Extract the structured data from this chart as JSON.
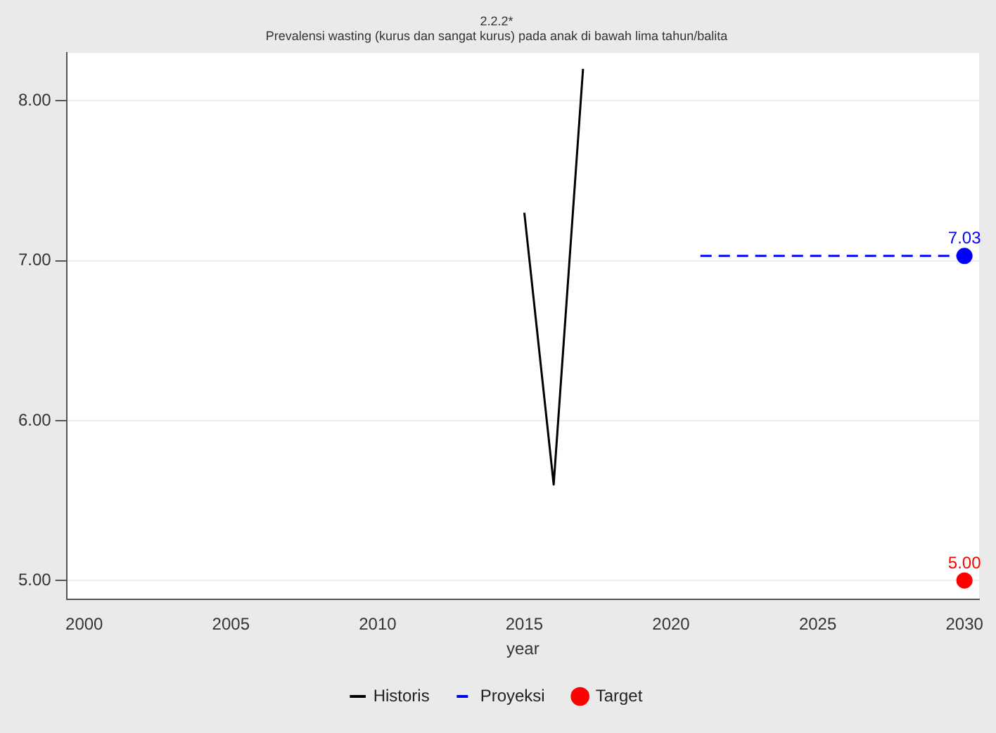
{
  "chart_data": {
    "type": "line",
    "title": "2.2.2*",
    "subtitle": "Prevalensi wasting (kurus dan sangat kurus) pada anak di bawah lima tahun/balita",
    "xlabel": "year",
    "xlim": [
      1999.4,
      2030.5
    ],
    "xticks": [
      2000,
      2005,
      2010,
      2015,
      2020,
      2025,
      2030
    ],
    "ylim": [
      4.88,
      8.3
    ],
    "yticks": [
      {
        "value": 5,
        "label": "5.00"
      },
      {
        "value": 6,
        "label": "6.00"
      },
      {
        "value": 7,
        "label": "7.00"
      },
      {
        "value": 8,
        "label": "8.00"
      }
    ],
    "grid": "y",
    "legend": "bottom",
    "series": [
      {
        "name": "Historis",
        "color": "#000000",
        "marker": "none",
        "line_style": "solid",
        "x": [
          2015,
          2016,
          2017
        ],
        "values": [
          7.3,
          5.6,
          8.2
        ]
      },
      {
        "name": "Proyeksi",
        "color": "#0000ff",
        "marker": "none",
        "line_style": "dashed",
        "x": [
          2021,
          2030
        ],
        "values": [
          7.03,
          7.03
        ]
      },
      {
        "type": "scatter",
        "color": "#0000ff",
        "marker": "circle",
        "x": [
          2030
        ],
        "values": [
          7.03
        ],
        "value_labels": [
          "7.03"
        ]
      },
      {
        "name": "Target",
        "type": "scatter",
        "color": "#ff0000",
        "marker": "circle",
        "x": [
          2030
        ],
        "values": [
          5.0
        ],
        "value_labels": [
          "5.00"
        ]
      }
    ]
  }
}
